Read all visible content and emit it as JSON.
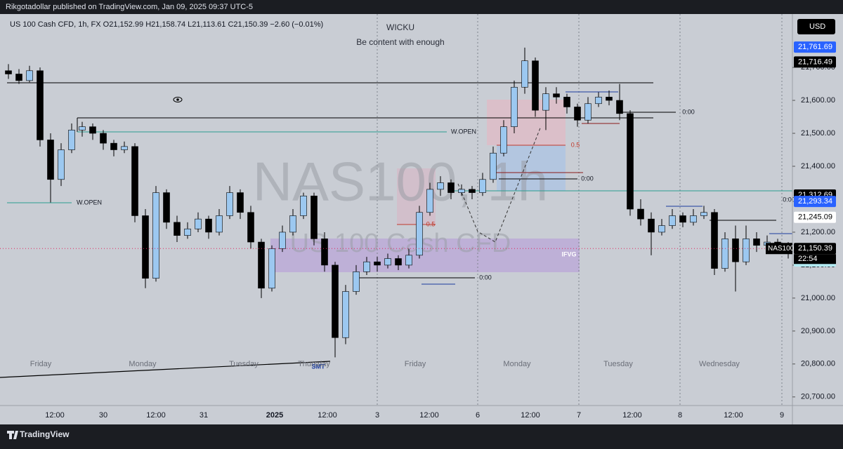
{
  "header": {
    "published": "Rikgotadollar published on TradingView.com, Jan 09, 2025 09:37 UTC-5"
  },
  "chart": {
    "symbol_line": "US 100 Cash CFD, 1h, FX  O21,152.99  H21,158.74  L21,113.61  C21,150.39  −2.60 (−0.01%)",
    "study_title": "WICKU",
    "study_subtitle": "Be content with enough",
    "watermark": "NAS100, 1h",
    "watermark_sub": "US 100 Cash CFD",
    "currency": "USD",
    "ylim": [
      20674,
      21862
    ],
    "yticks": [
      {
        "value": 20700,
        "label": "20,700.00"
      },
      {
        "value": 20800,
        "label": "20,800.00"
      },
      {
        "value": 20900,
        "label": "20,900.00"
      },
      {
        "value": 21000,
        "label": "21,000.00"
      },
      {
        "value": 21100,
        "label": "21,100.00"
      },
      {
        "value": 21200,
        "label": "21,200.00"
      },
      {
        "value": 21400,
        "label": "21,400.00"
      },
      {
        "value": 21500,
        "label": "21,500.00"
      },
      {
        "value": 21600,
        "label": "21,600.00"
      },
      {
        "value": 21700,
        "label": "21,700.00"
      }
    ],
    "price_badges": [
      {
        "value": 21761.69,
        "label": "21,761.69",
        "bg": "#2962ff",
        "color": "#ffffff"
      },
      {
        "value": 21716.49,
        "label": "21,716.49",
        "bg": "#000000",
        "color": "#ffffff"
      },
      {
        "value": 21312.69,
        "label": "21,312.69",
        "bg": "#000000",
        "color": "#ffffff"
      },
      {
        "value": 21293.34,
        "label": "21,293.34",
        "bg": "#2962ff",
        "color": "#ffffff"
      },
      {
        "value": 21245.09,
        "label": "21,245.09",
        "bg": "#ffffff",
        "color": "#000000"
      },
      {
        "value": 21112.49,
        "label": "21,112.49",
        "bg": "#b2ebf2",
        "color": "#ffffff"
      },
      {
        "value": 21150.39,
        "label": "21,150.39",
        "bg": "#000000",
        "color": "#ffffff"
      }
    ],
    "countdown": "22:54",
    "last_symbol": "NAS100",
    "colors": {
      "up": "#9cc8f0",
      "down": "#000000",
      "wick": "#000000",
      "background": "#c9cdd4"
    },
    "candles": [
      [
        21690,
        21710,
        21665,
        21680
      ],
      [
        21680,
        21695,
        21650,
        21660
      ],
      [
        21660,
        21705,
        21655,
        21690
      ],
      [
        21690,
        21700,
        21460,
        21480
      ],
      [
        21480,
        21500,
        21290,
        21360
      ],
      [
        21360,
        21470,
        21340,
        21450
      ],
      [
        21450,
        21530,
        21440,
        21510
      ],
      [
        21510,
        21535,
        21490,
        21520
      ],
      [
        21520,
        21530,
        21480,
        21500
      ],
      [
        21500,
        21510,
        21450,
        21470
      ],
      [
        21470,
        21480,
        21430,
        21450
      ],
      [
        21450,
        21475,
        21440,
        21460
      ],
      [
        21460,
        21470,
        21230,
        21250
      ],
      [
        21250,
        21270,
        21030,
        21060
      ],
      [
        21060,
        21340,
        21050,
        21320
      ],
      [
        21320,
        21330,
        21210,
        21230
      ],
      [
        21230,
        21250,
        21170,
        21190
      ],
      [
        21190,
        21230,
        21180,
        21210
      ],
      [
        21210,
        21260,
        21200,
        21240
      ],
      [
        21240,
        21250,
        21180,
        21200
      ],
      [
        21200,
        21270,
        21190,
        21250
      ],
      [
        21250,
        21340,
        21240,
        21320
      ],
      [
        21320,
        21330,
        21240,
        21260
      ],
      [
        21260,
        21280,
        21150,
        21170
      ],
      [
        21170,
        21180,
        21000,
        21030
      ],
      [
        21030,
        21160,
        21020,
        21150
      ],
      [
        21150,
        21220,
        21140,
        21200
      ],
      [
        21200,
        21270,
        21190,
        21250
      ],
      [
        21250,
        21320,
        21240,
        21310
      ],
      [
        21310,
        21320,
        21160,
        21180
      ],
      [
        21180,
        21200,
        21080,
        21100
      ],
      [
        21100,
        21110,
        20820,
        20880
      ],
      [
        20880,
        21040,
        20860,
        21020
      ],
      [
        21020,
        21100,
        21010,
        21080
      ],
      [
        21080,
        21125,
        21070,
        21110
      ],
      [
        21110,
        21125,
        21080,
        21100
      ],
      [
        21100,
        21135,
        21090,
        21120
      ],
      [
        21120,
        21130,
        21085,
        21100
      ],
      [
        21100,
        21150,
        21090,
        21130
      ],
      [
        21130,
        21280,
        21120,
        21260
      ],
      [
        21260,
        21350,
        21250,
        21330
      ],
      [
        21330,
        21370,
        21310,
        21350
      ],
      [
        21350,
        21360,
        21300,
        21320
      ],
      [
        21320,
        21345,
        21310,
        21330
      ],
      [
        21330,
        21340,
        21300,
        21320
      ],
      [
        21320,
        21380,
        21310,
        21360
      ],
      [
        21360,
        21460,
        21350,
        21440
      ],
      [
        21440,
        21540,
        21430,
        21520
      ],
      [
        21520,
        21660,
        21500,
        21640
      ],
      [
        21640,
        21760,
        21620,
        21720
      ],
      [
        21720,
        21730,
        21550,
        21570
      ],
      [
        21570,
        21640,
        21510,
        21620
      ],
      [
        21620,
        21640,
        21590,
        21610
      ],
      [
        21610,
        21620,
        21560,
        21580
      ],
      [
        21580,
        21590,
        21520,
        21540
      ],
      [
        21540,
        21610,
        21530,
        21590
      ],
      [
        21590,
        21625,
        21580,
        21610
      ],
      [
        21610,
        21630,
        21585,
        21600
      ],
      [
        21600,
        21650,
        21540,
        21560
      ],
      [
        21560,
        21570,
        21250,
        21270
      ],
      [
        21270,
        21300,
        21220,
        21240
      ],
      [
        21240,
        21260,
        21130,
        21200
      ],
      [
        21200,
        21240,
        21190,
        21220
      ],
      [
        21220,
        21270,
        21210,
        21250
      ],
      [
        21250,
        21260,
        21215,
        21230
      ],
      [
        21230,
        21270,
        21220,
        21250
      ],
      [
        21250,
        21280,
        21240,
        21260
      ],
      [
        21260,
        21270,
        21070,
        21090
      ],
      [
        21090,
        21200,
        21080,
        21180
      ],
      [
        21180,
        21220,
        21020,
        21110
      ],
      [
        21110,
        21220,
        21100,
        21180
      ],
      [
        21180,
        21200,
        21140,
        21160
      ],
      [
        21160,
        21190,
        21150,
        21170
      ],
      [
        21170,
        21180,
        21140,
        21160
      ],
      [
        21160,
        21170,
        21120,
        21150
      ]
    ],
    "day_labels": [
      "Friday",
      "Monday",
      "Tuesday",
      "Thursday",
      "Friday",
      "Monday",
      "Tuesday",
      "Wednesday"
    ],
    "time_labels": [
      "12:00",
      "30",
      "12:00",
      "31",
      "2025",
      "12:00",
      "3",
      "12:00",
      "6",
      "12:00",
      "7",
      "12:00",
      "8",
      "12:00",
      "9"
    ],
    "annotations": [
      "W.OPEN",
      "W.OPEN",
      "0:00",
      "0:00",
      "0:00",
      "0:00",
      "0.5",
      "0.5",
      "IFVG",
      "SMT"
    ]
  },
  "footer": {
    "brand": "TradingView"
  }
}
